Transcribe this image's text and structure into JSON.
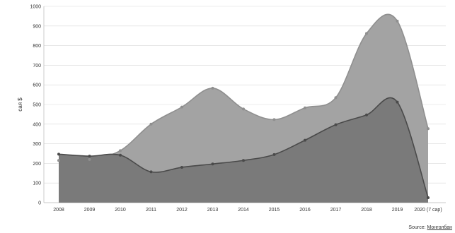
{
  "chart_data": {
    "type": "area",
    "categories": [
      "2008",
      "2009",
      "2010",
      "2011",
      "2012",
      "2013",
      "2014",
      "2015",
      "2016",
      "2017",
      "2018",
      "2019",
      "2020 (7 сар)"
    ],
    "series": [
      {
        "values": [
          215,
          220,
          265,
          400,
          487,
          583,
          477,
          423,
          483,
          535,
          862,
          925,
          377
        ],
        "color": "#a3a3a3",
        "line": "#8f8f8f"
      },
      {
        "values": [
          247,
          237,
          242,
          157,
          180,
          197,
          215,
          245,
          318,
          397,
          447,
          512,
          25
        ],
        "color": "#7a7a7a",
        "line": "#4a4a4a"
      }
    ],
    "ylabel": "сая $",
    "ylim": [
      0,
      1000
    ],
    "yticks": [
      0,
      100,
      200,
      300,
      400,
      500,
      600,
      700,
      800,
      900,
      1000
    ],
    "grid": true,
    "legend": "none"
  },
  "source": {
    "prefix": "Source: ",
    "link": "Монголбан"
  }
}
